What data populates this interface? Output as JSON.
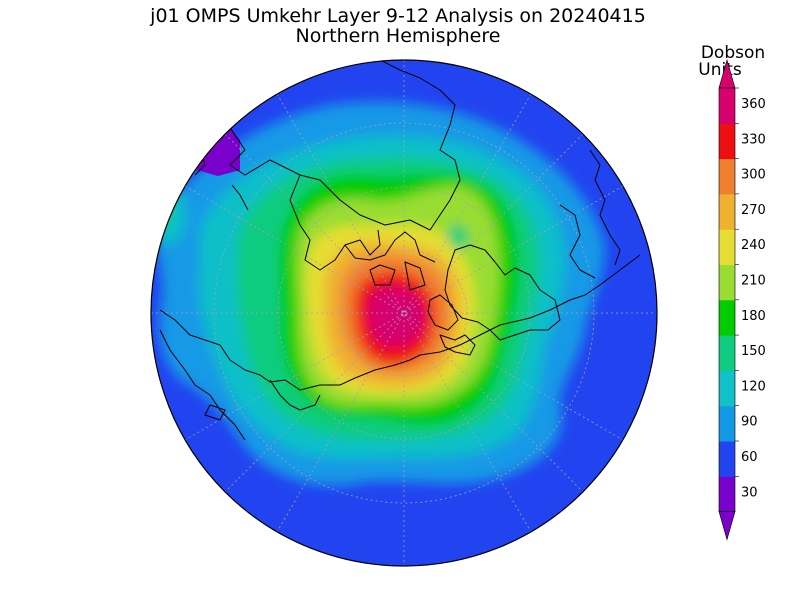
{
  "title": "j01 OMPS Umkehr Layer 9-12 Analysis on 20240415",
  "subtitle": "Northern Hemisphere",
  "legend": {
    "unit_line1": "Dobson",
    "unit_line2": "Units",
    "ticks": [
      "360",
      "330",
      "300",
      "270",
      "240",
      "210",
      "180",
      "150",
      "120",
      "90",
      "60",
      "30"
    ],
    "colors": [
      "#7a00cc",
      "#2244f0",
      "#1499e6",
      "#11c0c8",
      "#10cc80",
      "#00cc00",
      "#99dd33",
      "#e6dd33",
      "#f0b030",
      "#f08030",
      "#ee1010",
      "#d6006e"
    ]
  },
  "map": {
    "projection": "polar stereographic",
    "hemisphere": "north",
    "grid": true,
    "coastlines": true
  }
}
